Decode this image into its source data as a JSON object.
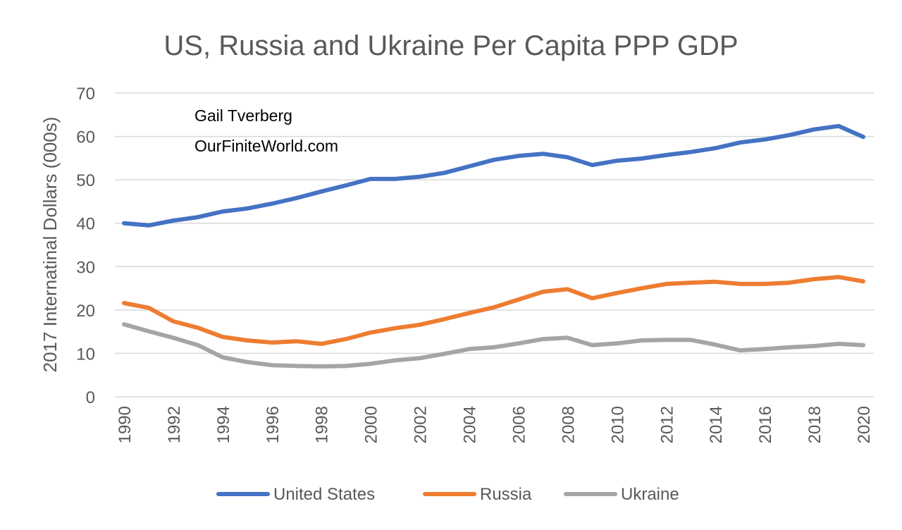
{
  "chart_data": {
    "type": "line",
    "title": "US, Russia and Ukraine Per Capita PPP GDP",
    "xlabel": "",
    "ylabel": "2017 Internatinal Dollars (000s)",
    "ylim": [
      0,
      70
    ],
    "yticks": [
      "0",
      "10",
      "20",
      "30",
      "40",
      "50",
      "60",
      "70"
    ],
    "xticks": [
      "1990",
      "1992",
      "1994",
      "1996",
      "1998",
      "2000",
      "2002",
      "2004",
      "2006",
      "2008",
      "2010",
      "2012",
      "2014",
      "2016",
      "2018",
      "2020"
    ],
    "grid": true,
    "legend_position": "bottom",
    "annotations": [
      "Gail Tverberg",
      "OurFiniteWorld.com"
    ],
    "x": [
      1990,
      1991,
      1992,
      1993,
      1994,
      1995,
      1996,
      1997,
      1998,
      1999,
      2000,
      2001,
      2002,
      2003,
      2004,
      2005,
      2006,
      2007,
      2008,
      2009,
      2010,
      2011,
      2012,
      2013,
      2014,
      2015,
      2016,
      2017,
      2018,
      2019,
      2020
    ],
    "series": [
      {
        "name": "United States",
        "color": "#4472c4",
        "values": [
          40.0,
          39.5,
          40.6,
          41.4,
          42.7,
          43.4,
          44.5,
          45.8,
          47.3,
          48.7,
          50.2,
          50.2,
          50.7,
          51.6,
          53.1,
          54.6,
          55.5,
          56.0,
          55.2,
          53.4,
          54.4,
          54.9,
          55.7,
          56.4,
          57.3,
          58.6,
          59.3,
          60.3,
          61.6,
          62.4,
          59.9
        ]
      },
      {
        "name": "Russia",
        "color": "#ed7d31",
        "values": [
          21.6,
          20.5,
          17.4,
          15.9,
          13.8,
          13.0,
          12.5,
          12.8,
          12.2,
          13.3,
          14.8,
          15.8,
          16.6,
          17.9,
          19.3,
          20.6,
          22.4,
          24.2,
          24.8,
          22.7,
          23.9,
          25.0,
          26.0,
          26.3,
          26.5,
          26.0,
          26.0,
          26.3,
          27.1,
          27.6,
          26.6
        ]
      },
      {
        "name": "Ukraine",
        "color": "#a5a5a5",
        "values": [
          16.7,
          15.1,
          13.6,
          11.9,
          9.1,
          8.0,
          7.3,
          7.1,
          7.0,
          7.1,
          7.6,
          8.4,
          8.9,
          9.9,
          11.0,
          11.4,
          12.3,
          13.3,
          13.6,
          11.9,
          12.3,
          13.0,
          13.1,
          13.1,
          12.0,
          10.7,
          11.0,
          11.4,
          11.7,
          12.2,
          11.9
        ]
      }
    ]
  }
}
